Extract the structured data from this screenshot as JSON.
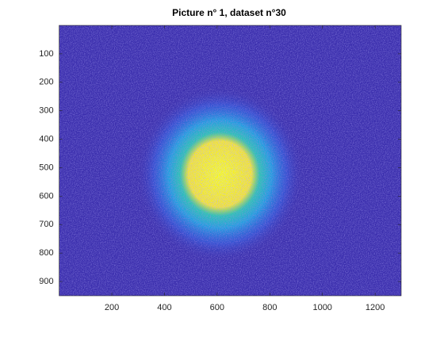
{
  "chart_data": {
    "type": "image",
    "title": "Picture n° 1, dataset n°30",
    "xlim": [
      0,
      1299
    ],
    "xticks": [
      200,
      400,
      600,
      800,
      1000,
      1200
    ],
    "ylim": [
      0,
      950
    ],
    "yticks": [
      100,
      200,
      300,
      400,
      500,
      600,
      700,
      800,
      900
    ],
    "y_reversed": true,
    "background_color": "#3b2fae"
  }
}
